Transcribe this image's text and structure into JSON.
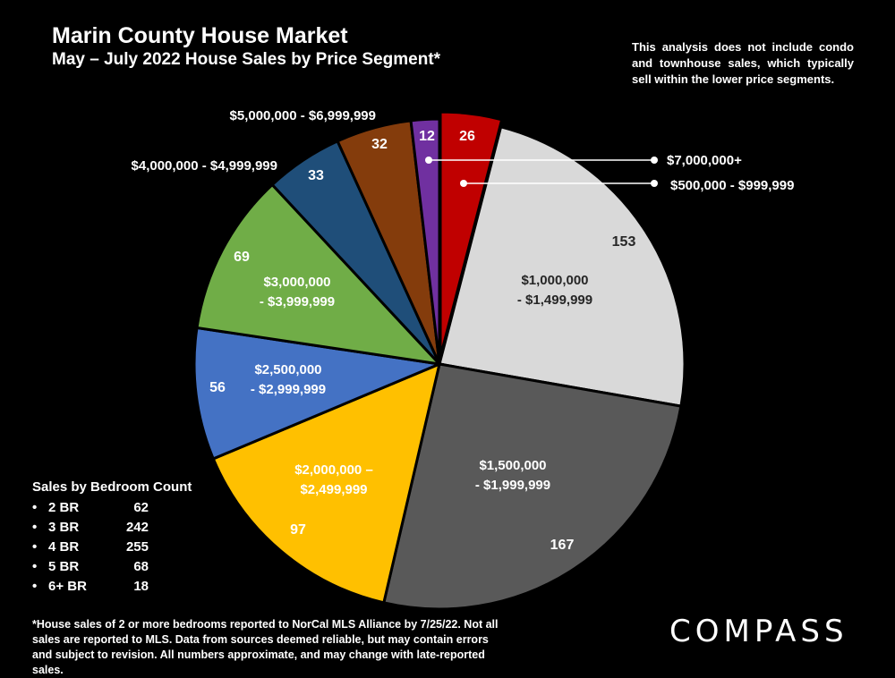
{
  "chart_data": {
    "type": "pie",
    "title": "Marin County House Market",
    "subtitle": "May – July 2022 House Sales by Price Segment*",
    "slices": [
      {
        "label": "$500,000 - $999,999",
        "value": 26,
        "color": "#c00000"
      },
      {
        "label": "$1,000,000 - $1,499,999",
        "value": 153,
        "color": "#d9d9d9"
      },
      {
        "label": "$1,500,000 - $1,999,999",
        "value": 167,
        "color": "#595959"
      },
      {
        "label": "$2,000,000 – $2,499,999",
        "value": 97,
        "color": "#ffc000"
      },
      {
        "label": "$2,500,000 - $2,999,999",
        "value": 56,
        "color": "#4472c4"
      },
      {
        "label": "$3,000,000 - $3,999,999",
        "value": 69,
        "color": "#70ad47"
      },
      {
        "label": "$4,000,000 - $4,999,999",
        "value": 33,
        "color": "#1f4e79"
      },
      {
        "label": "$5,000,000 - $6,999,999",
        "value": 32,
        "color": "#843c0c"
      },
      {
        "label": "$7,000,000+",
        "value": 12,
        "color": "#7030a0"
      }
    ],
    "inner_labels": {
      "$1,000,000 - $1,499,999": [
        "$1,000,000",
        "- $1,499,999"
      ],
      "$1,500,000 - $1,999,999": [
        "$1,500,000",
        "- $1,999,999"
      ],
      "$2,000,000 – $2,499,999": [
        "$2,000,000 –",
        "$2,499,999"
      ],
      "$2,500,000 - $2,999,999": [
        "$2,500,000",
        "- $2,999,999"
      ],
      "$3,000,000 - $3,999,999": [
        "$3,000,000",
        "- $3,999,999"
      ]
    }
  },
  "note": "This analysis does not include condo and townhouse sales, which typically sell within the lower price segments.",
  "bedroom_count": {
    "title": "Sales by Bedroom Count",
    "items": [
      {
        "label": "2 BR",
        "value": "62"
      },
      {
        "label": "3 BR",
        "value": "242"
      },
      {
        "label": "4 BR",
        "value": "255"
      },
      {
        "label": "5 BR",
        "value": "68"
      },
      {
        "label": "6+ BR",
        "value": "18"
      }
    ]
  },
  "footnote": "*House sales of 2 or more bedrooms reported to NorCal MLS Alliance by 7/25/22. Not all sales are reported to MLS. Data from sources deemed reliable, but may contain errors and subject to revision. All numbers approximate, and may change with late-reported sales.",
  "brand": "COMPASS"
}
